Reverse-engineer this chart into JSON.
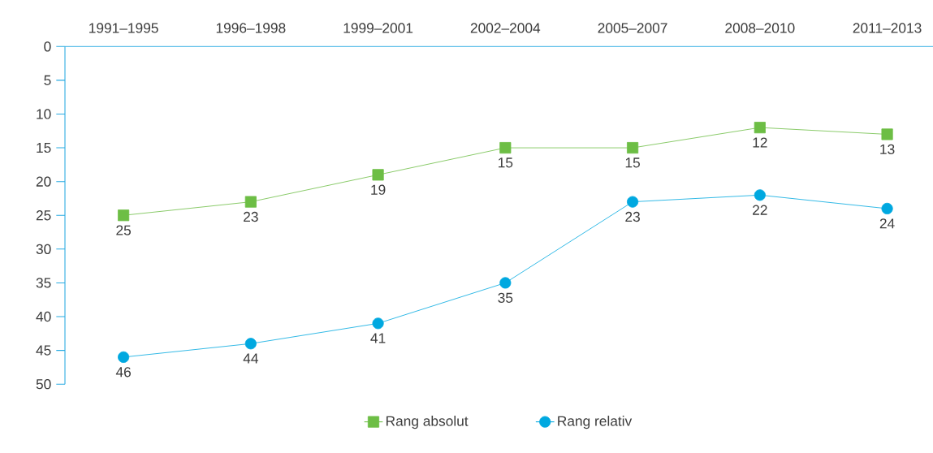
{
  "chart_data": {
    "type": "line",
    "categories": [
      "1991–1995",
      "1996–1998",
      "1999–2001",
      "2002–2004",
      "2005–2007",
      "2008–2010",
      "2011–2013"
    ],
    "series": [
      {
        "name": "Rang absolut",
        "color": "#6dbe45",
        "marker": "square",
        "values": [
          25,
          23,
          19,
          15,
          15,
          12,
          13
        ]
      },
      {
        "name": "Rang relativ",
        "color": "#00a8e0",
        "marker": "circle",
        "values": [
          46,
          44,
          41,
          35,
          23,
          22,
          24
        ]
      }
    ],
    "ylim": [
      50,
      0
    ],
    "yticks": [
      0,
      5,
      10,
      15,
      20,
      25,
      30,
      35,
      40,
      45,
      50
    ],
    "data_labels": true,
    "legend": "bottom",
    "grid": false
  }
}
